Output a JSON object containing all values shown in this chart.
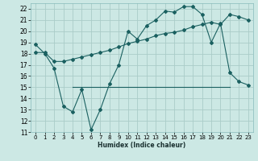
{
  "xlabel": "Humidex (Indice chaleur)",
  "bg_color": "#cce8e4",
  "grid_color": "#aaccc8",
  "line_color": "#1a6060",
  "xlim": [
    -0.5,
    23.5
  ],
  "ylim": [
    11,
    22.5
  ],
  "xticks": [
    0,
    1,
    2,
    3,
    4,
    5,
    6,
    7,
    8,
    9,
    10,
    11,
    12,
    13,
    14,
    15,
    16,
    17,
    18,
    19,
    20,
    21,
    22,
    23
  ],
  "yticks": [
    11,
    12,
    13,
    14,
    15,
    16,
    17,
    18,
    19,
    20,
    21,
    22
  ],
  "series1_x": [
    0,
    1,
    2,
    3,
    4,
    5,
    6,
    7,
    8,
    9,
    10,
    11,
    12,
    13,
    14,
    15,
    16,
    17,
    18,
    19,
    20,
    21,
    22,
    23
  ],
  "series1_y": [
    18.8,
    18.0,
    16.7,
    13.3,
    12.8,
    14.8,
    11.2,
    13.0,
    15.3,
    17.0,
    20.0,
    19.3,
    20.5,
    21.0,
    21.8,
    21.7,
    22.2,
    22.2,
    21.5,
    19.0,
    20.7,
    16.3,
    15.5,
    15.2
  ],
  "series2_x": [
    0,
    1,
    2,
    3,
    4,
    5,
    6,
    7,
    8,
    9,
    10,
    11,
    12,
    13,
    14,
    15,
    16,
    17,
    18,
    19,
    20,
    21,
    22,
    23
  ],
  "series2_y": [
    18.1,
    18.1,
    17.3,
    17.3,
    17.5,
    17.7,
    17.9,
    18.1,
    18.3,
    18.6,
    18.9,
    19.1,
    19.3,
    19.6,
    19.8,
    19.9,
    20.1,
    20.4,
    20.6,
    20.8,
    20.6,
    21.5,
    21.3,
    21.0
  ],
  "series3_x": [
    4,
    18,
    21
  ],
  "series3_y": [
    15.0,
    15.0,
    15.0
  ]
}
